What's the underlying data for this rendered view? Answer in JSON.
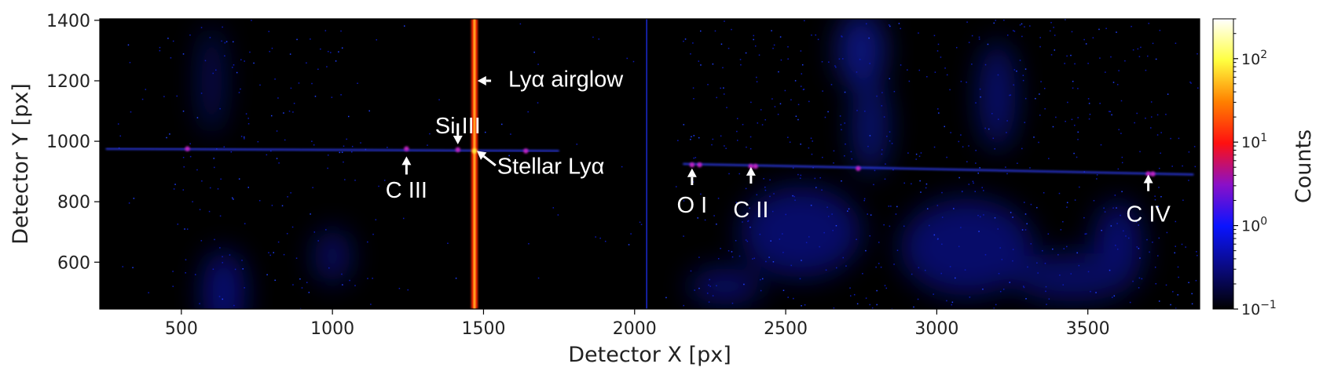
{
  "chart_data": {
    "type": "heatmap",
    "xlabel": "Detector X [px]",
    "ylabel": "Detector Y [px]",
    "xlim": [
      230,
      3870
    ],
    "ylim": [
      445,
      1405
    ],
    "xticks": [
      500,
      1000,
      1500,
      2000,
      2500,
      3000,
      3500
    ],
    "yticks": [
      600,
      800,
      1000,
      1200,
      1400
    ],
    "colorbar": {
      "label": "Counts",
      "scale": "log",
      "range": [
        0.1,
        300
      ],
      "ticks": [
        {
          "value": 0.1,
          "base": "10",
          "exp": "−1"
        },
        {
          "value": 1,
          "base": "10",
          "exp": "0"
        },
        {
          "value": 10,
          "base": "10",
          "exp": "1"
        },
        {
          "value": 100,
          "base": "10",
          "exp": "2"
        }
      ],
      "colormap": [
        "#000000",
        "#0a0a80",
        "#0a14ff",
        "#8a10c8",
        "#ff1010",
        "#ff8000",
        "#ffff40",
        "#ffffff"
      ]
    },
    "features": {
      "ly_alpha_column_x": 1470,
      "detector_gap_x": 2040,
      "spectrum_trace": [
        {
          "x": 250,
          "y": 975
        },
        {
          "x": 1750,
          "y": 968
        },
        {
          "x": 2160,
          "y": 925
        },
        {
          "x": 3850,
          "y": 890
        }
      ]
    },
    "annotations": [
      {
        "label": "Lyα airglow",
        "arrow_tip": {
          "x": 1480,
          "y": 1200
        }
      },
      {
        "label": "Si III",
        "arrow_tip": {
          "x": 1415,
          "y": 990
        }
      },
      {
        "label": "Stellar Lyα",
        "arrow_tip": {
          "x": 1478,
          "y": 968
        }
      },
      {
        "label": "C III",
        "arrow_tip": {
          "x": 1245,
          "y": 950
        }
      },
      {
        "label": "O I",
        "arrow_tip": {
          "x": 2190,
          "y": 910
        }
      },
      {
        "label": "C II",
        "arrow_tip": {
          "x": 2385,
          "y": 915
        }
      },
      {
        "label": "C IV",
        "arrow_tip": {
          "x": 3700,
          "y": 890
        }
      }
    ]
  }
}
